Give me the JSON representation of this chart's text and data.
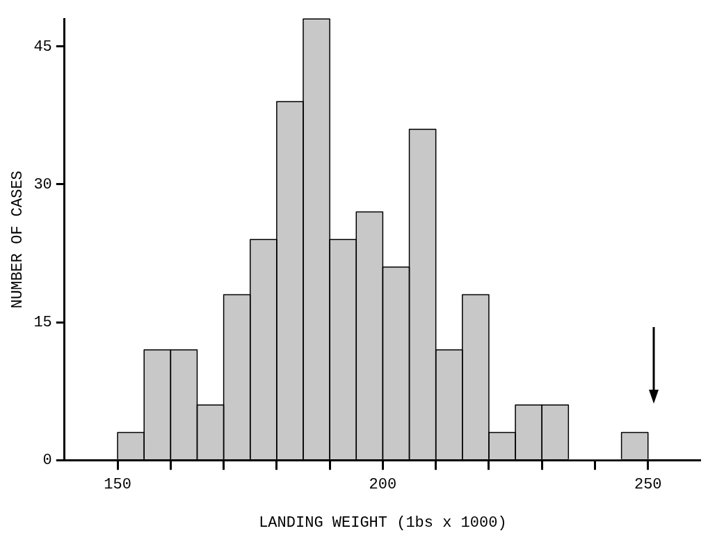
{
  "chart_data": {
    "type": "histogram",
    "xlabel": "LANDING WEIGHT (1bs x 1000)",
    "ylabel": "NUMBER OF CASES",
    "bins": [
      150,
      155,
      160,
      165,
      170,
      175,
      180,
      185,
      190,
      195,
      200,
      205,
      210,
      215,
      220,
      225,
      230,
      235,
      240,
      245,
      250
    ],
    "values": [
      3,
      12,
      12,
      6,
      18,
      24,
      39,
      48,
      24,
      27,
      21,
      36,
      12,
      18,
      3,
      6,
      6,
      0,
      0,
      3
    ],
    "color": "#c8c8c8",
    "xlim": [
      140,
      260
    ],
    "xticks": [
      150,
      {
        "value": 160,
        "label": null
      },
      {
        "value": 170,
        "label": null
      },
      {
        "value": 180,
        "label": null
      },
      {
        "value": 190,
        "label": null
      },
      200,
      {
        "value": 210,
        "label": null
      },
      {
        "value": 220,
        "label": null
      },
      {
        "value": 230,
        "label": null
      },
      {
        "value": 240,
        "label": null
      },
      250
    ],
    "ylim": [
      0,
      48
    ],
    "yticks": [
      0,
      15,
      30,
      45
    ],
    "grid": false,
    "legend": false
  }
}
